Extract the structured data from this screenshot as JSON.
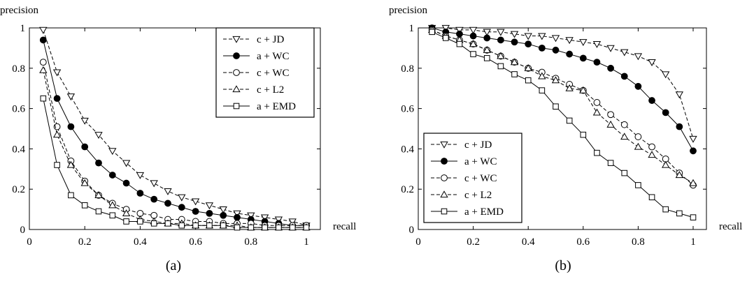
{
  "chart_data": [
    {
      "type": "line",
      "panel_label": "(a)",
      "ylabel": "precision",
      "xlabel": "recall",
      "xlim": [
        0,
        1
      ],
      "ylim": [
        0,
        1
      ],
      "x_ticks": [
        0,
        0.2,
        0.4,
        0.6,
        0.8,
        1
      ],
      "x_tick_labels": [
        "0",
        "0.2",
        "0.4",
        "0.6",
        "0.8",
        "1"
      ],
      "y_ticks": [
        0,
        0.2,
        0.4,
        0.6,
        0.8,
        1
      ],
      "y_tick_labels": [
        "0",
        "0.2",
        "0.4",
        "0.6",
        "0.8",
        "1"
      ],
      "grid": false,
      "legend_position": "top-right",
      "x": [
        0.05,
        0.1,
        0.15,
        0.2,
        0.25,
        0.3,
        0.35,
        0.4,
        0.45,
        0.5,
        0.55,
        0.6,
        0.65,
        0.7,
        0.75,
        0.8,
        0.85,
        0.9,
        0.95,
        1.0
      ],
      "series": [
        {
          "name": "c + JD",
          "marker": "triangle-down",
          "dashed": true,
          "filled": false,
          "values": [
            0.99,
            0.78,
            0.66,
            0.54,
            0.47,
            0.39,
            0.33,
            0.27,
            0.23,
            0.19,
            0.16,
            0.14,
            0.12,
            0.1,
            0.08,
            0.07,
            0.06,
            0.05,
            0.04,
            0.02
          ]
        },
        {
          "name": "a + WC",
          "marker": "circle",
          "dashed": false,
          "filled": true,
          "values": [
            0.94,
            0.65,
            0.51,
            0.41,
            0.33,
            0.27,
            0.23,
            0.18,
            0.15,
            0.13,
            0.11,
            0.09,
            0.08,
            0.07,
            0.06,
            0.05,
            0.04,
            0.03,
            0.02,
            0.02
          ]
        },
        {
          "name": "c + WC",
          "marker": "circle",
          "dashed": true,
          "filled": false,
          "values": [
            0.83,
            0.51,
            0.34,
            0.24,
            0.17,
            0.13,
            0.1,
            0.08,
            0.07,
            0.05,
            0.05,
            0.04,
            0.04,
            0.03,
            0.03,
            0.03,
            0.02,
            0.02,
            0.02,
            0.02
          ]
        },
        {
          "name": "c + L2",
          "marker": "triangle-up",
          "dashed": true,
          "filled": false,
          "values": [
            0.79,
            0.47,
            0.32,
            0.23,
            0.17,
            0.12,
            0.08,
            0.05,
            0.04,
            0.03,
            0.03,
            0.02,
            0.02,
            0.02,
            0.02,
            0.01,
            0.01,
            0.01,
            0.01,
            0.01
          ]
        },
        {
          "name": "a + EMD",
          "marker": "square",
          "dashed": false,
          "filled": false,
          "values": [
            0.65,
            0.32,
            0.17,
            0.12,
            0.09,
            0.07,
            0.04,
            0.04,
            0.03,
            0.03,
            0.02,
            0.02,
            0.02,
            0.02,
            0.01,
            0.01,
            0.01,
            0.01,
            0.01,
            0.01
          ]
        }
      ]
    },
    {
      "type": "line",
      "panel_label": "(b)",
      "ylabel": "precision",
      "xlabel": "recall",
      "xlim": [
        0,
        1
      ],
      "ylim": [
        0,
        1
      ],
      "x_ticks": [
        0,
        0.2,
        0.4,
        0.6,
        0.8,
        1
      ],
      "x_tick_labels": [
        "0",
        "0.2",
        "0.4",
        "0.6",
        "0.8",
        "1"
      ],
      "y_ticks": [
        0,
        0.2,
        0.4,
        0.6,
        0.8,
        1
      ],
      "y_tick_labels": [
        "0",
        "0.2",
        "0.4",
        "0.6",
        "0.8",
        "1"
      ],
      "grid": false,
      "legend_position": "bottom-left",
      "x": [
        0.05,
        0.1,
        0.15,
        0.2,
        0.25,
        0.3,
        0.35,
        0.4,
        0.45,
        0.5,
        0.55,
        0.6,
        0.65,
        0.7,
        0.75,
        0.8,
        0.85,
        0.9,
        0.95,
        1.0
      ],
      "series": [
        {
          "name": "c + JD",
          "marker": "triangle-down",
          "dashed": true,
          "filled": false,
          "values": [
            1.0,
            1.0,
            0.99,
            0.99,
            0.98,
            0.98,
            0.97,
            0.96,
            0.96,
            0.95,
            0.94,
            0.93,
            0.92,
            0.9,
            0.88,
            0.86,
            0.83,
            0.77,
            0.67,
            0.45
          ]
        },
        {
          "name": "a + WC",
          "marker": "circle",
          "dashed": false,
          "filled": true,
          "values": [
            1.0,
            0.98,
            0.97,
            0.96,
            0.95,
            0.94,
            0.93,
            0.92,
            0.9,
            0.89,
            0.87,
            0.85,
            0.83,
            0.8,
            0.76,
            0.71,
            0.64,
            0.58,
            0.51,
            0.39
          ]
        },
        {
          "name": "c + WC",
          "marker": "circle",
          "dashed": true,
          "filled": false,
          "values": [
            0.99,
            0.96,
            0.94,
            0.92,
            0.89,
            0.86,
            0.83,
            0.8,
            0.78,
            0.75,
            0.72,
            0.69,
            0.63,
            0.57,
            0.52,
            0.46,
            0.41,
            0.35,
            0.28,
            0.22
          ]
        },
        {
          "name": "c + L2",
          "marker": "triangle-up",
          "dashed": true,
          "filled": false,
          "values": [
            0.99,
            0.96,
            0.94,
            0.92,
            0.89,
            0.86,
            0.83,
            0.8,
            0.76,
            0.74,
            0.7,
            0.69,
            0.58,
            0.52,
            0.46,
            0.41,
            0.37,
            0.32,
            0.27,
            0.23
          ]
        },
        {
          "name": "a + EMD",
          "marker": "square",
          "dashed": false,
          "filled": false,
          "values": [
            0.98,
            0.95,
            0.92,
            0.87,
            0.85,
            0.81,
            0.77,
            0.74,
            0.69,
            0.61,
            0.54,
            0.47,
            0.38,
            0.33,
            0.28,
            0.22,
            0.16,
            0.1,
            0.08,
            0.06
          ]
        }
      ]
    }
  ]
}
